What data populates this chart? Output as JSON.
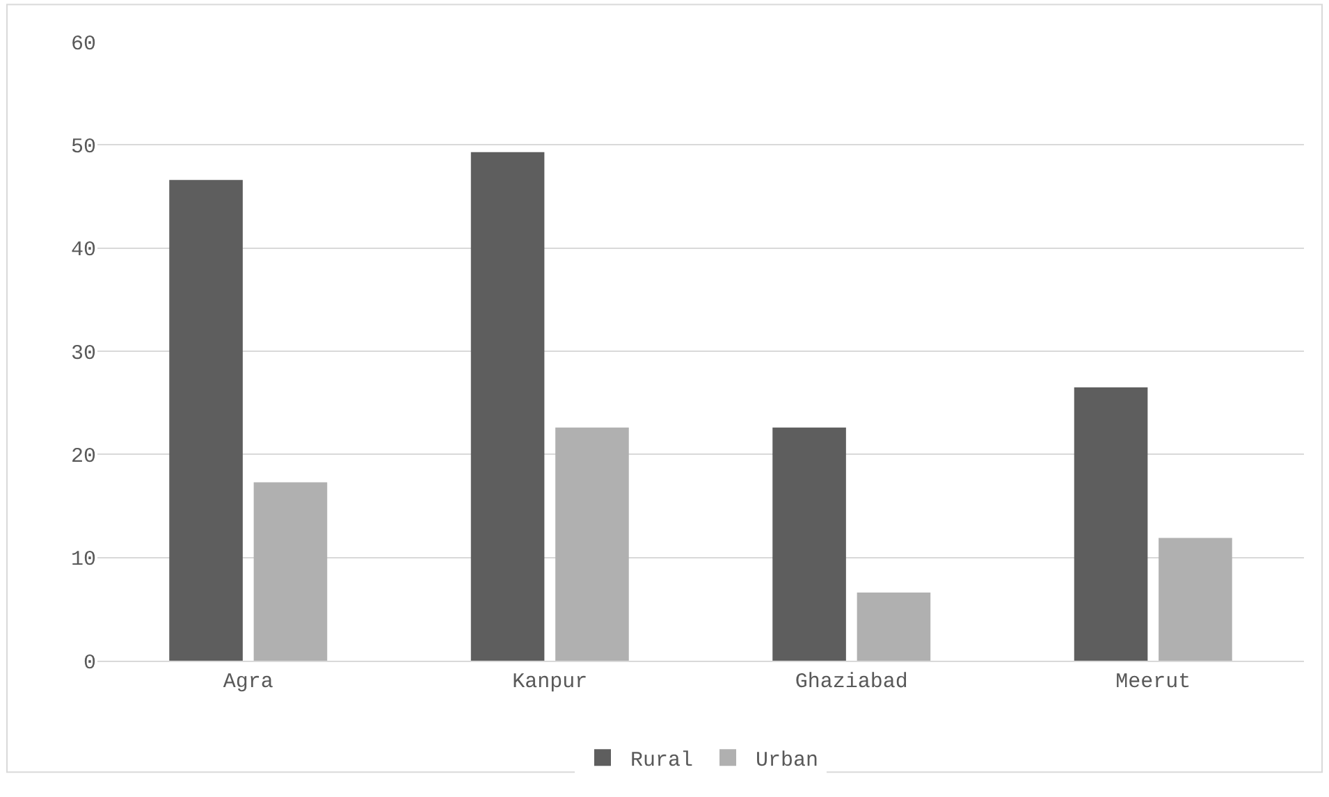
{
  "chart_data": {
    "type": "bar",
    "categories": [
      "Agra",
      "Kanpur",
      "Ghaziabad",
      "Meerut"
    ],
    "series": [
      {
        "name": "Rural",
        "color": "#5e5e5e",
        "values": [
          46.6,
          49.3,
          22.6,
          26.5
        ]
      },
      {
        "name": "Urban",
        "color": "#b0b0b0",
        "values": [
          17.3,
          22.6,
          6.6,
          11.9
        ]
      }
    ],
    "ylim": [
      0,
      60
    ],
    "yticks": [
      0,
      10,
      20,
      30,
      40,
      50,
      60
    ],
    "grid": "y",
    "legend": "bottom"
  }
}
